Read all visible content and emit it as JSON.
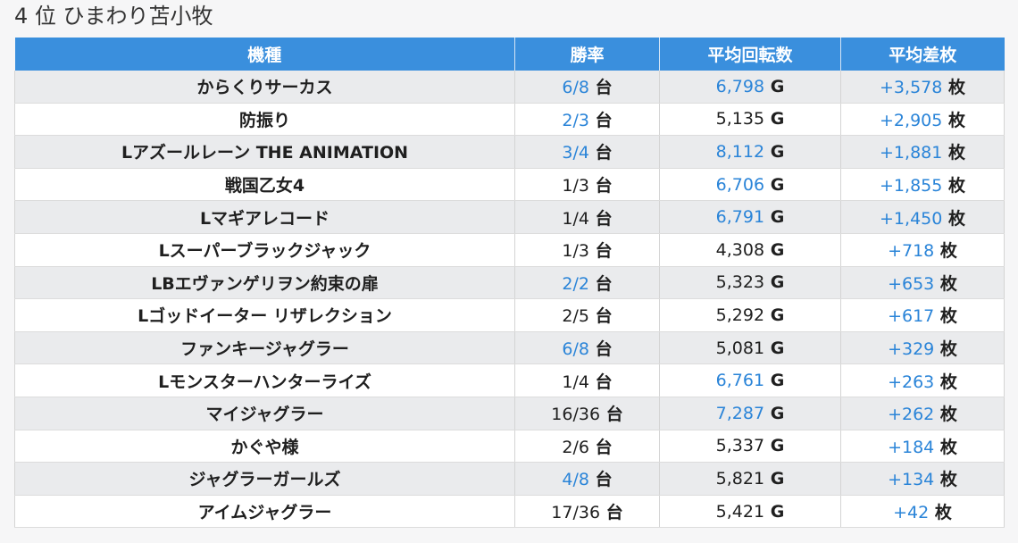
{
  "page": {
    "title": "4 位 ひまわり苫小牧"
  },
  "colors": {
    "header_bg": "#3a8fdd",
    "highlight_text": "#2a84d8",
    "row_alt_bg": "#eaebed"
  },
  "table": {
    "headers": [
      "機種",
      "勝率",
      "平均回転数",
      "平均差枚"
    ],
    "rows": [
      {
        "machine": "からくりサーカス",
        "win_rate": "6/8",
        "win_unit": "台",
        "win_blue": true,
        "spins": "6,798",
        "spins_unit": "G",
        "spins_blue": true,
        "diff": "+3,578",
        "diff_unit": "枚"
      },
      {
        "machine": "防振り",
        "win_rate": "2/3",
        "win_unit": "台",
        "win_blue": true,
        "spins": "5,135",
        "spins_unit": "G",
        "spins_blue": false,
        "diff": "+2,905",
        "diff_unit": "枚"
      },
      {
        "machine": "Lアズールレーン THE ANIMATION",
        "win_rate": "3/4",
        "win_unit": "台",
        "win_blue": true,
        "spins": "8,112",
        "spins_unit": "G",
        "spins_blue": true,
        "diff": "+1,881",
        "diff_unit": "枚"
      },
      {
        "machine": "戦国乙女4",
        "win_rate": "1/3",
        "win_unit": "台",
        "win_blue": false,
        "spins": "6,706",
        "spins_unit": "G",
        "spins_blue": true,
        "diff": "+1,855",
        "diff_unit": "枚"
      },
      {
        "machine": "Lマギアレコード",
        "win_rate": "1/4",
        "win_unit": "台",
        "win_blue": false,
        "spins": "6,791",
        "spins_unit": "G",
        "spins_blue": true,
        "diff": "+1,450",
        "diff_unit": "枚"
      },
      {
        "machine": "Lスーパーブラックジャック",
        "win_rate": "1/3",
        "win_unit": "台",
        "win_blue": false,
        "spins": "4,308",
        "spins_unit": "G",
        "spins_blue": false,
        "diff": "+718",
        "diff_unit": "枚"
      },
      {
        "machine": "LBエヴァンゲリヲン約束の扉",
        "win_rate": "2/2",
        "win_unit": "台",
        "win_blue": true,
        "spins": "5,323",
        "spins_unit": "G",
        "spins_blue": false,
        "diff": "+653",
        "diff_unit": "枚"
      },
      {
        "machine": "Lゴッドイーター リザレクション",
        "win_rate": "2/5",
        "win_unit": "台",
        "win_blue": false,
        "spins": "5,292",
        "spins_unit": "G",
        "spins_blue": false,
        "diff": "+617",
        "diff_unit": "枚"
      },
      {
        "machine": "ファンキージャグラー",
        "win_rate": "6/8",
        "win_unit": "台",
        "win_blue": true,
        "spins": "5,081",
        "spins_unit": "G",
        "spins_blue": false,
        "diff": "+329",
        "diff_unit": "枚"
      },
      {
        "machine": "Lモンスターハンターライズ",
        "win_rate": "1/4",
        "win_unit": "台",
        "win_blue": false,
        "spins": "6,761",
        "spins_unit": "G",
        "spins_blue": true,
        "diff": "+263",
        "diff_unit": "枚"
      },
      {
        "machine": "マイジャグラー",
        "win_rate": "16/36",
        "win_unit": "台",
        "win_blue": false,
        "spins": "7,287",
        "spins_unit": "G",
        "spins_blue": true,
        "diff": "+262",
        "diff_unit": "枚"
      },
      {
        "machine": "かぐや様",
        "win_rate": "2/6",
        "win_unit": "台",
        "win_blue": false,
        "spins": "5,337",
        "spins_unit": "G",
        "spins_blue": false,
        "diff": "+184",
        "diff_unit": "枚"
      },
      {
        "machine": "ジャグラーガールズ",
        "win_rate": "4/8",
        "win_unit": "台",
        "win_blue": true,
        "spins": "5,821",
        "spins_unit": "G",
        "spins_blue": false,
        "diff": "+134",
        "diff_unit": "枚"
      },
      {
        "machine": "アイムジャグラー",
        "win_rate": "17/36",
        "win_unit": "台",
        "win_blue": false,
        "spins": "5,421",
        "spins_unit": "G",
        "spins_blue": false,
        "diff": "+42",
        "diff_unit": "枚"
      }
    ]
  }
}
